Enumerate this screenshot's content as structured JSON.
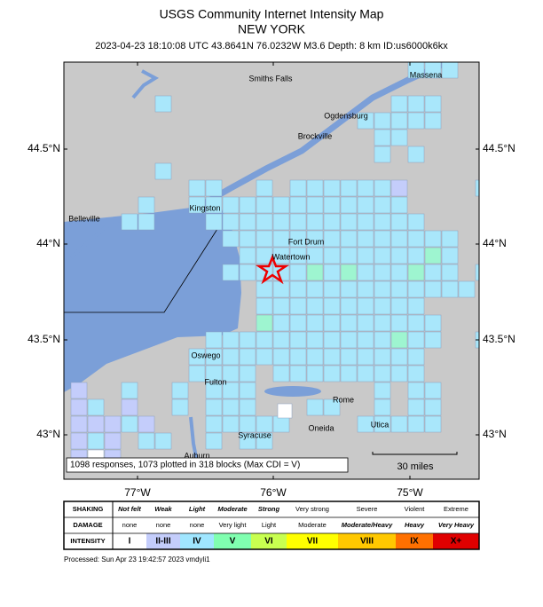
{
  "header": {
    "title": "USGS Community Internet Intensity Map",
    "region": "NEW YORK",
    "subtitle": "2023-04-23 18:10:08 UTC 43.8641N 76.0232W M3.6 Depth: 8 km ID:us6000k6kx"
  },
  "map": {
    "place_labels": [
      "Smiths Falls",
      "Massena",
      "Ogdensburg",
      "Brockville",
      "Kingston",
      "Belleville",
      "Fort Drum",
      "Watertown",
      "Oswego",
      "Fulton",
      "Rome",
      "Oneida",
      "Utica",
      "Syracuse",
      "Auburn"
    ],
    "lat_labels": [
      "44.5°N",
      "44°N",
      "43.5°N",
      "43°N"
    ],
    "lon_labels": [
      "77°W",
      "76°W",
      "75°W"
    ],
    "summary": "1098 responses, 1073 plotted in 318 blocks (Max CDI = V)",
    "scale": "30 miles"
  },
  "legend": {
    "row_labels": [
      "SHAKING",
      "DAMAGE",
      "INTENSITY"
    ],
    "shaking": [
      "Not felt",
      "Weak",
      "Light",
      "Moderate",
      "Strong",
      "Very strong",
      "Severe",
      "Violent",
      "Extreme"
    ],
    "damage": [
      "none",
      "none",
      "none",
      "Very light",
      "Light",
      "Moderate",
      "Moderate/Heavy",
      "Heavy",
      "Very Heavy"
    ],
    "intensity": [
      "I",
      "II-III",
      "IV",
      "V",
      "VI",
      "VII",
      "VIII",
      "IX",
      "X+"
    ]
  },
  "footer": "Processed: Sun Apr 23 19:42:57 2023 vmdyli1"
}
